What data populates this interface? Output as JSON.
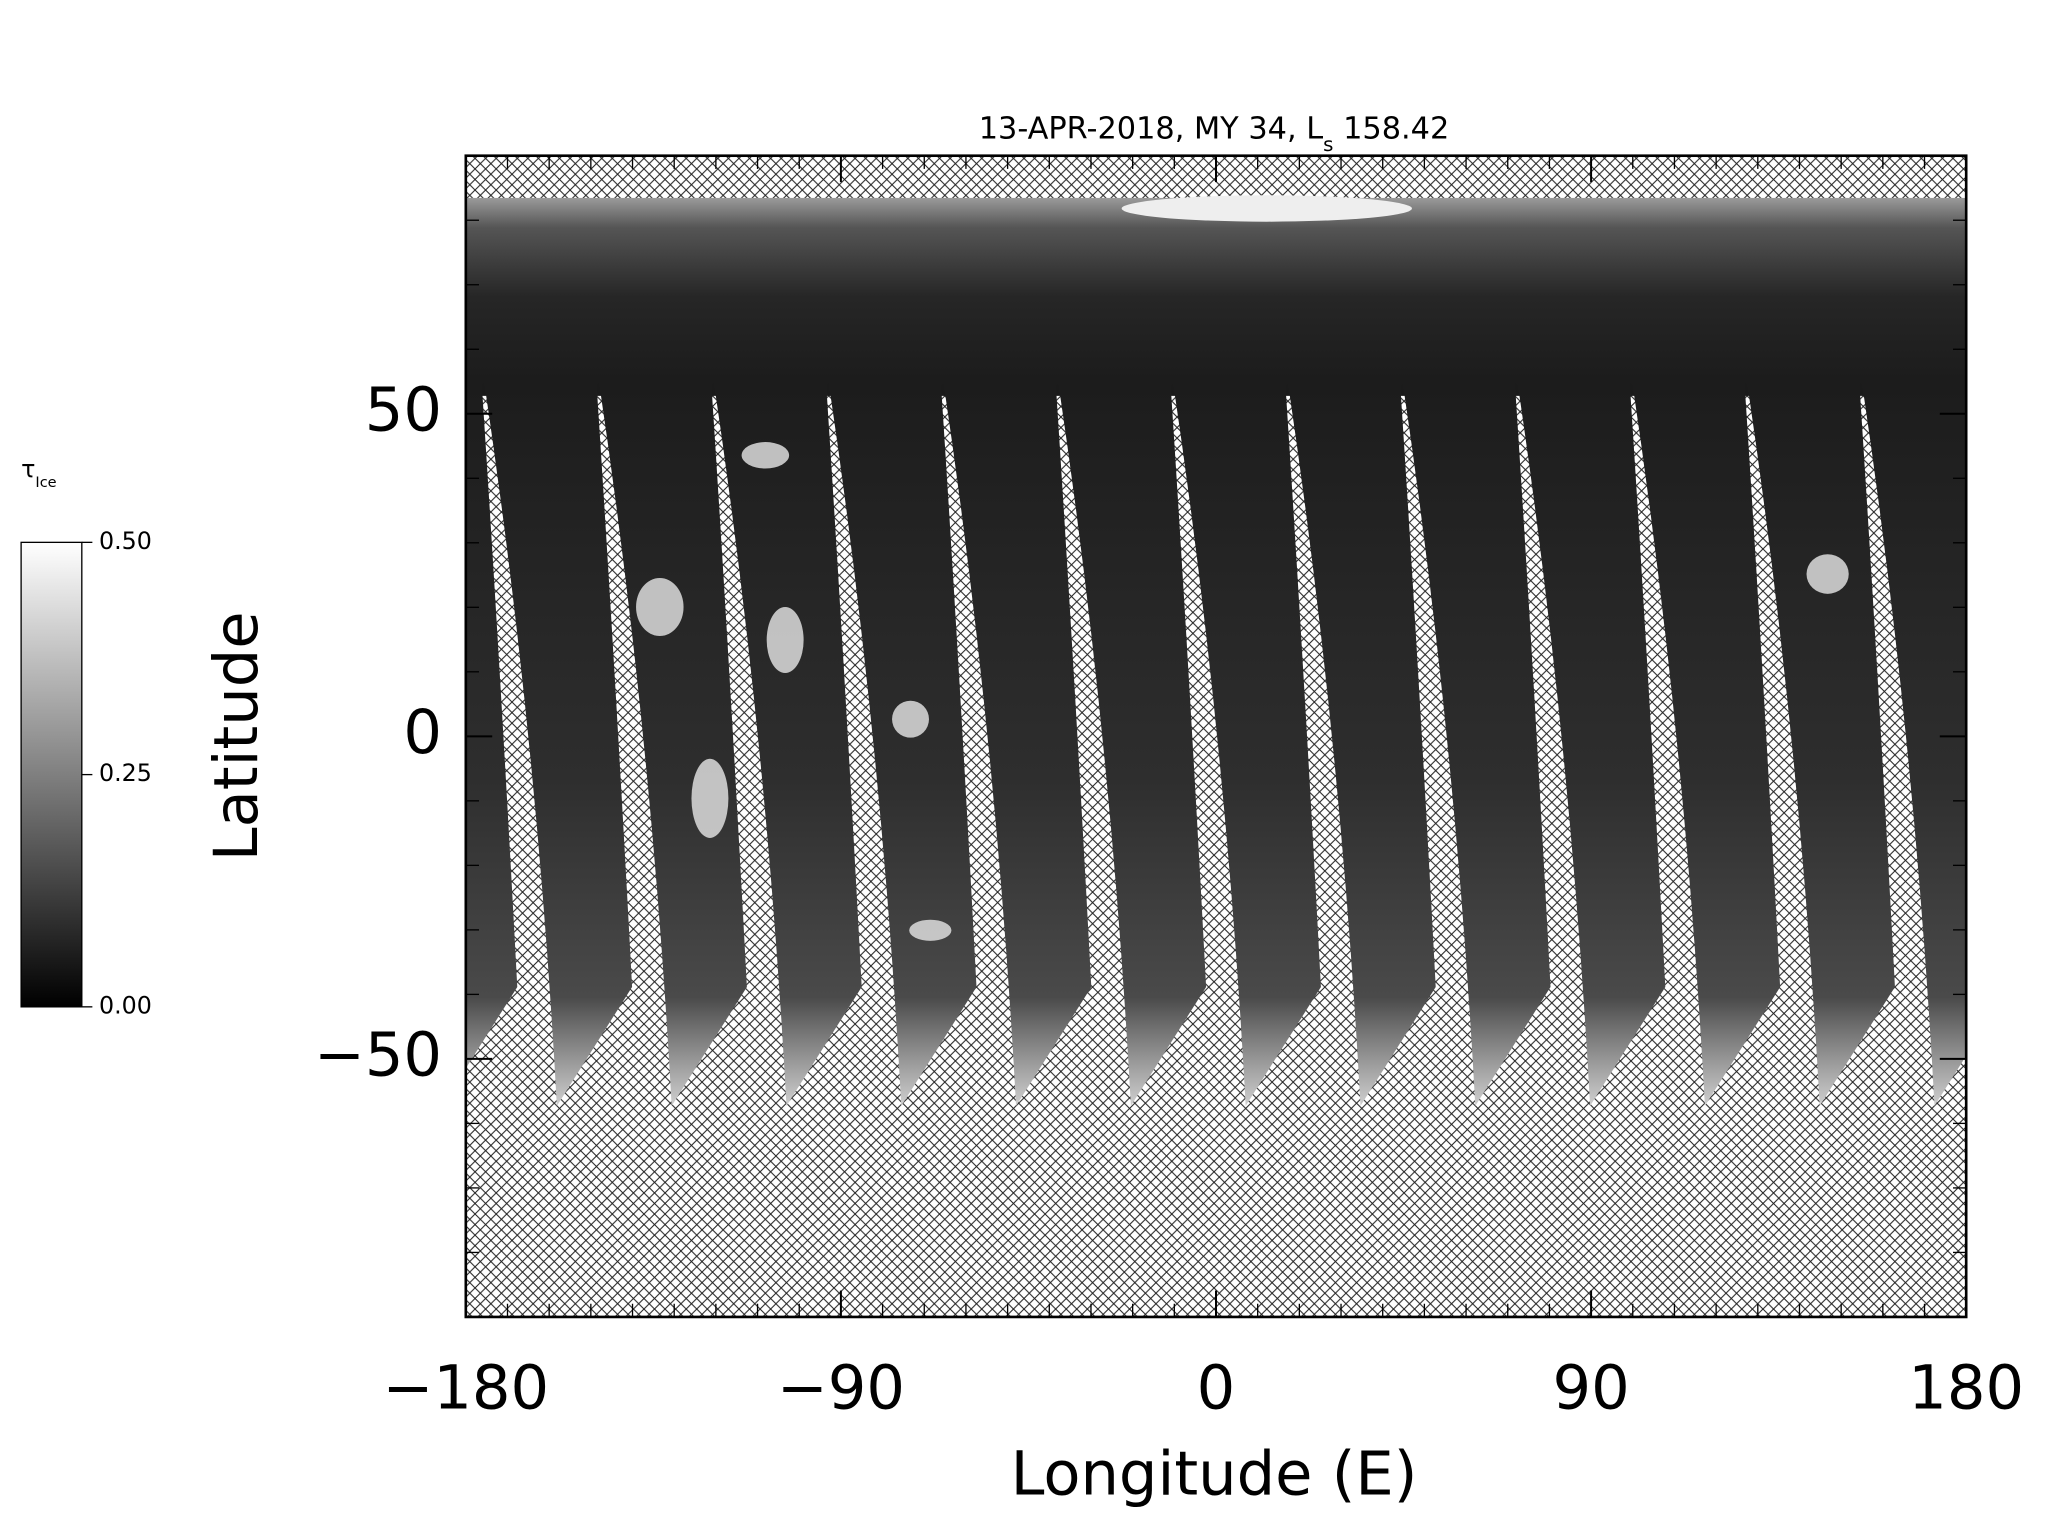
{
  "chart_data": {
    "type": "map",
    "title": {
      "prefix": "13-APR-2018, MY 34,  L",
      "subscript": "s",
      "suffix": " 158.42"
    },
    "xlabel": "Longitude (E)",
    "ylabel": "Latitude",
    "xlim": [
      -180,
      180
    ],
    "xticks": [
      {
        "value": -180,
        "label": "−180"
      },
      {
        "value": -90,
        "label": "−90"
      },
      0,
      90,
      180
    ],
    "minor_xtick_step": 10,
    "ylim": [
      -90,
      90
    ],
    "yticks": [
      {
        "value": -50,
        "label": "−50"
      },
      0,
      50
    ],
    "minor_ytick_step": 10,
    "colorbar": {
      "label": "τ",
      "label_subscript": "Ice",
      "clim": [
        0,
        0.5
      ],
      "ticks": [
        {
          "value": 0,
          "label": "0.00"
        },
        0.25,
        {
          "value": 0.5,
          "label": "0.50"
        }
      ],
      "colormap": [
        "#000000",
        "#ffffff"
      ]
    }
  }
}
